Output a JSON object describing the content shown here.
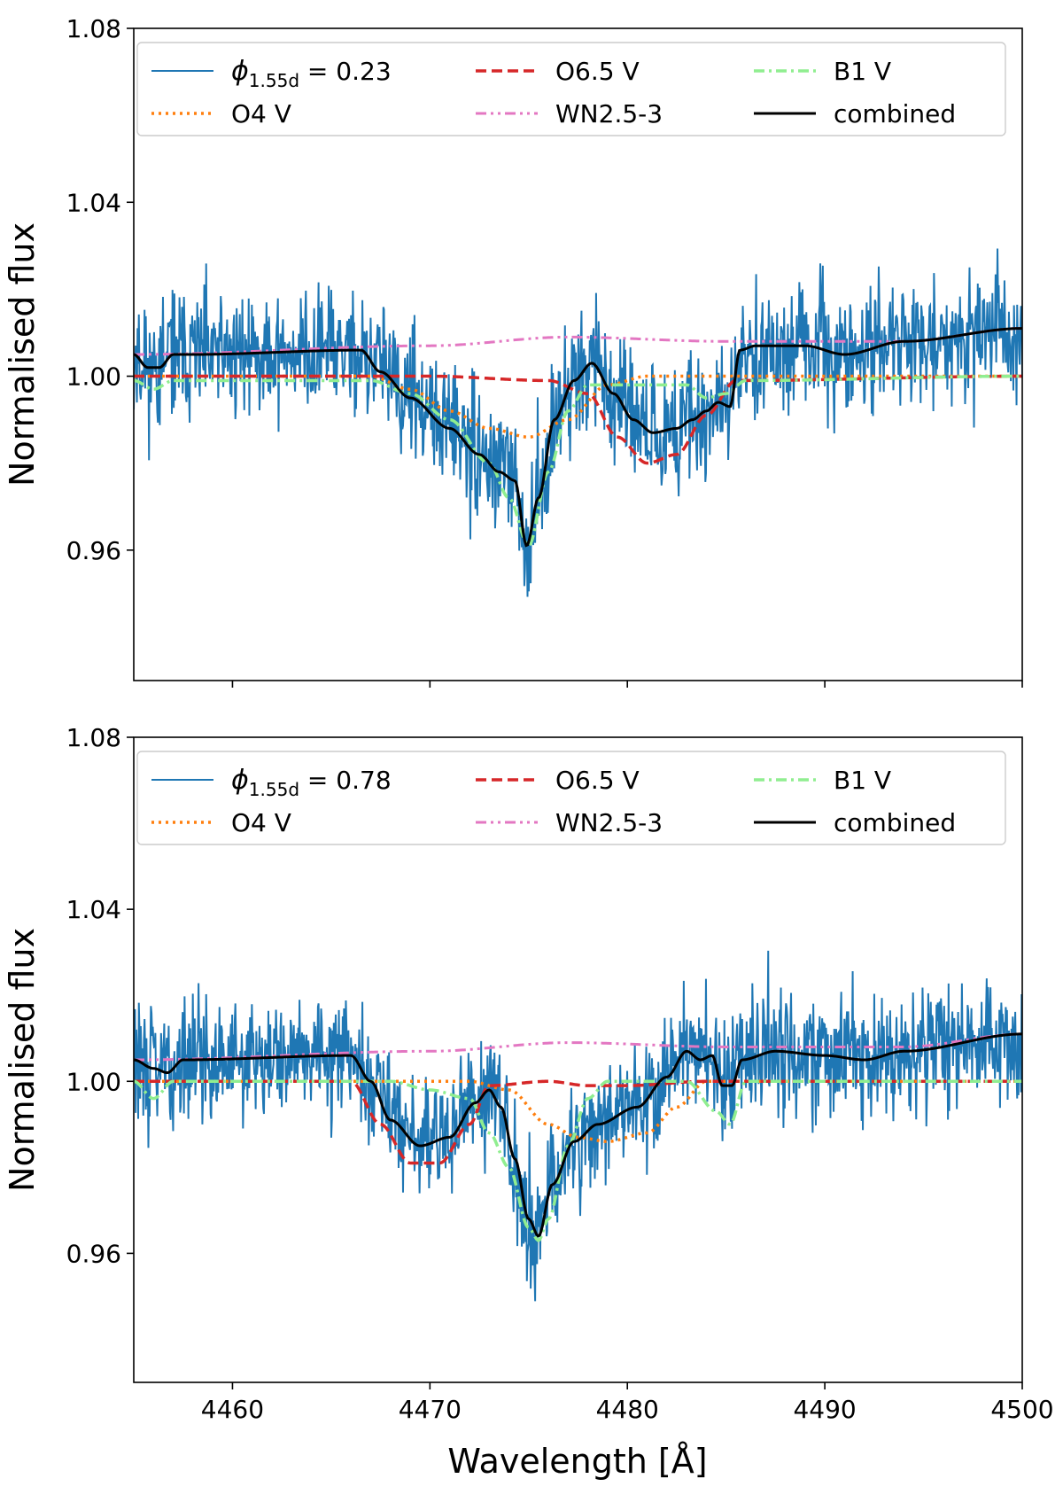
{
  "figure": {
    "xlabel": "Wavelength [Å]",
    "ylabel": "Normalised flux"
  },
  "colors": {
    "observed": "#1f77b4",
    "o4v": "#ff7f0e",
    "o65v": "#d62728",
    "b1v": "#90ee90",
    "wn": "#e377c2",
    "combined": "#000000"
  },
  "chart_data": [
    {
      "type": "line",
      "panel": "top",
      "title": "",
      "xlabel": "",
      "ylabel": "Normalised flux",
      "xlim": [
        4455,
        4500
      ],
      "ylim": [
        0.93,
        1.08
      ],
      "xticks": [
        4460,
        4470,
        4480,
        4490,
        4500
      ],
      "yticks": [
        0.96,
        1.0,
        1.04,
        1.08
      ],
      "ytick_labels": [
        "0.96",
        "1.00",
        "1.04",
        "1.08"
      ],
      "legend_position": "top",
      "legend": [
        {
          "key": "obs",
          "prefix": "ϕ",
          "sub": "1.55d",
          "suffix": " = 0.23"
        },
        {
          "key": "o4v",
          "label": "O4 V"
        },
        {
          "key": "o65v",
          "label": "O6.5 V"
        },
        {
          "key": "wn",
          "label": "WN2.5-3"
        },
        {
          "key": "b1v",
          "label": "B1 V"
        },
        {
          "key": "combined",
          "label": "combined"
        }
      ],
      "series": [
        {
          "name": "O4 V",
          "key": "o4v",
          "style": "dotted",
          "x": [
            4455,
            4467,
            4469,
            4471,
            4473,
            4475,
            4477,
            4479,
            4481,
            4485,
            4500
          ],
          "y": [
            1.0,
            1.0,
            0.997,
            0.992,
            0.988,
            0.986,
            0.99,
            0.998,
            1.0,
            1.0,
            1.0
          ]
        },
        {
          "name": "O6.5 V",
          "key": "o65v",
          "style": "dashed",
          "x": [
            4455,
            4470,
            4476,
            4478,
            4479.5,
            4481,
            4482.5,
            4484,
            4485.5,
            4500
          ],
          "y": [
            1.0,
            1.0,
            0.999,
            0.996,
            0.986,
            0.98,
            0.982,
            0.991,
            0.999,
            1.0
          ]
        },
        {
          "name": "B1 V",
          "key": "b1v",
          "style": "dashdot",
          "x": [
            4455,
            4456,
            4457,
            4467,
            4469,
            4471,
            4473,
            4474,
            4475,
            4476,
            4477,
            4478,
            4483,
            4484,
            4485,
            4486,
            4500
          ],
          "y": [
            0.999,
            0.997,
            0.999,
            0.999,
            0.996,
            0.99,
            0.98,
            0.972,
            0.961,
            0.978,
            0.992,
            0.998,
            0.998,
            0.995,
            0.996,
            0.999,
            1.0
          ]
        },
        {
          "name": "WN2.5-3",
          "key": "wn",
          "style": "dashdotdot",
          "x": [
            4455,
            4470,
            4477,
            4485,
            4490,
            4494,
            4500
          ],
          "y": [
            1.005,
            1.007,
            1.009,
            1.008,
            1.008,
            1.008,
            1.011
          ]
        },
        {
          "name": "combined",
          "key": "combined",
          "style": "solid",
          "x": [
            4455,
            4455.7,
            4456.3,
            4457,
            4458,
            4466.5,
            4467.5,
            4469,
            4471,
            4472.5,
            4473.5,
            4474.3,
            4474.9,
            4475.5,
            4476.3,
            4477.3,
            4478.2,
            4479.3,
            4480.3,
            4481.3,
            4482.5,
            4483.3,
            4484,
            4484.6,
            4485.2,
            4485.7,
            4486.5,
            4489,
            4491,
            4494,
            4500
          ],
          "y": [
            1.005,
            1.002,
            1.002,
            1.005,
            1.005,
            1.006,
            1.001,
            0.995,
            0.988,
            0.982,
            0.978,
            0.976,
            0.961,
            0.972,
            0.99,
            0.999,
            1.003,
            0.996,
            0.99,
            0.987,
            0.988,
            0.99,
            0.992,
            0.994,
            0.993,
            1.006,
            1.007,
            1.007,
            1.005,
            1.008,
            1.011
          ]
        }
      ],
      "observed": {
        "name": "ϕ1.55d = 0.23",
        "key": "obs",
        "n_points": 1400,
        "noise_sigma": 0.0075,
        "seed": 11
      }
    },
    {
      "type": "line",
      "panel": "bottom",
      "title": "",
      "xlabel": "Wavelength [Å]",
      "ylabel": "Normalised flux",
      "xlim": [
        4455,
        4500
      ],
      "ylim": [
        0.93,
        1.08
      ],
      "xticks": [
        4460,
        4470,
        4480,
        4490,
        4500
      ],
      "xtick_labels": [
        "4460",
        "4470",
        "4480",
        "4490",
        "4500"
      ],
      "yticks": [
        0.96,
        1.0,
        1.04,
        1.08
      ],
      "ytick_labels": [
        "0.96",
        "1.00",
        "1.04",
        "1.08"
      ],
      "legend_position": "top",
      "legend": [
        {
          "key": "obs",
          "prefix": "ϕ",
          "sub": "1.55d",
          "suffix": " = 0.78"
        },
        {
          "key": "o4v",
          "label": "O4 V"
        },
        {
          "key": "o65v",
          "label": "O6.5 V"
        },
        {
          "key": "wn",
          "label": "WN2.5-3"
        },
        {
          "key": "b1v",
          "label": "B1 V"
        },
        {
          "key": "combined",
          "label": "combined"
        }
      ],
      "series": [
        {
          "name": "O4 V",
          "key": "o4v",
          "style": "dotted",
          "x": [
            4455,
            4472,
            4474,
            4476,
            4477.5,
            4479,
            4481,
            4482.5,
            4484,
            4500
          ],
          "y": [
            1.0,
            1.0,
            0.998,
            0.99,
            0.987,
            0.986,
            0.988,
            0.994,
            1.0,
            1.0
          ]
        },
        {
          "name": "O6.5 V",
          "key": "o65v",
          "style": "dashed",
          "x": [
            4455,
            4466,
            4467.5,
            4469,
            4470.5,
            4472,
            4473,
            4476,
            4478,
            4480,
            4484,
            4500
          ],
          "y": [
            1.0,
            1.0,
            0.99,
            0.981,
            0.981,
            0.99,
            0.999,
            1.0,
            0.999,
            0.999,
            1.0,
            1.0
          ]
        },
        {
          "name": "B1 V",
          "key": "b1v",
          "style": "dashdot",
          "x": [
            4455,
            4456,
            4457,
            4468,
            4470,
            4472,
            4473,
            4474,
            4475,
            4475.5,
            4476,
            4477,
            4478,
            4479,
            4483,
            4484.5,
            4485.2,
            4486,
            4500
          ],
          "y": [
            1.0,
            0.996,
            1.0,
            1.0,
            0.998,
            0.996,
            0.988,
            0.98,
            0.966,
            0.963,
            0.968,
            0.985,
            0.996,
            1.0,
            1.0,
            0.993,
            0.99,
            1.0,
            1.0
          ]
        },
        {
          "name": "WN2.5-3",
          "key": "wn",
          "style": "dashdotdot",
          "x": [
            4455,
            4470,
            4477,
            4485,
            4490,
            4494,
            4500
          ],
          "y": [
            1.005,
            1.007,
            1.009,
            1.008,
            1.008,
            1.008,
            1.011
          ]
        },
        {
          "name": "combined",
          "key": "combined",
          "style": "solid",
          "x": [
            4455,
            4456,
            4456.7,
            4457.5,
            4466,
            4467,
            4468,
            4469.5,
            4471,
            4472.3,
            4473,
            4473.6,
            4474.3,
            4475,
            4475.5,
            4476.2,
            4477.3,
            4478.5,
            4480.5,
            4482,
            4483,
            4483.7,
            4484.3,
            4484.8,
            4485.3,
            4485.8,
            4487.5,
            4490,
            4492,
            4494,
            4500
          ],
          "y": [
            1.005,
            1.003,
            1.002,
            1.005,
            1.006,
            1.0,
            0.991,
            0.985,
            0.987,
            0.995,
            0.998,
            0.994,
            0.982,
            0.968,
            0.964,
            0.976,
            0.986,
            0.99,
            0.994,
            1.001,
            1.007,
            1.005,
            1.006,
            0.999,
            0.999,
            1.005,
            1.007,
            1.006,
            1.005,
            1.007,
            1.011
          ]
        }
      ],
      "observed": {
        "name": "ϕ1.55d = 0.78",
        "key": "obs",
        "n_points": 1400,
        "noise_sigma": 0.0075,
        "seed": 29
      }
    }
  ]
}
